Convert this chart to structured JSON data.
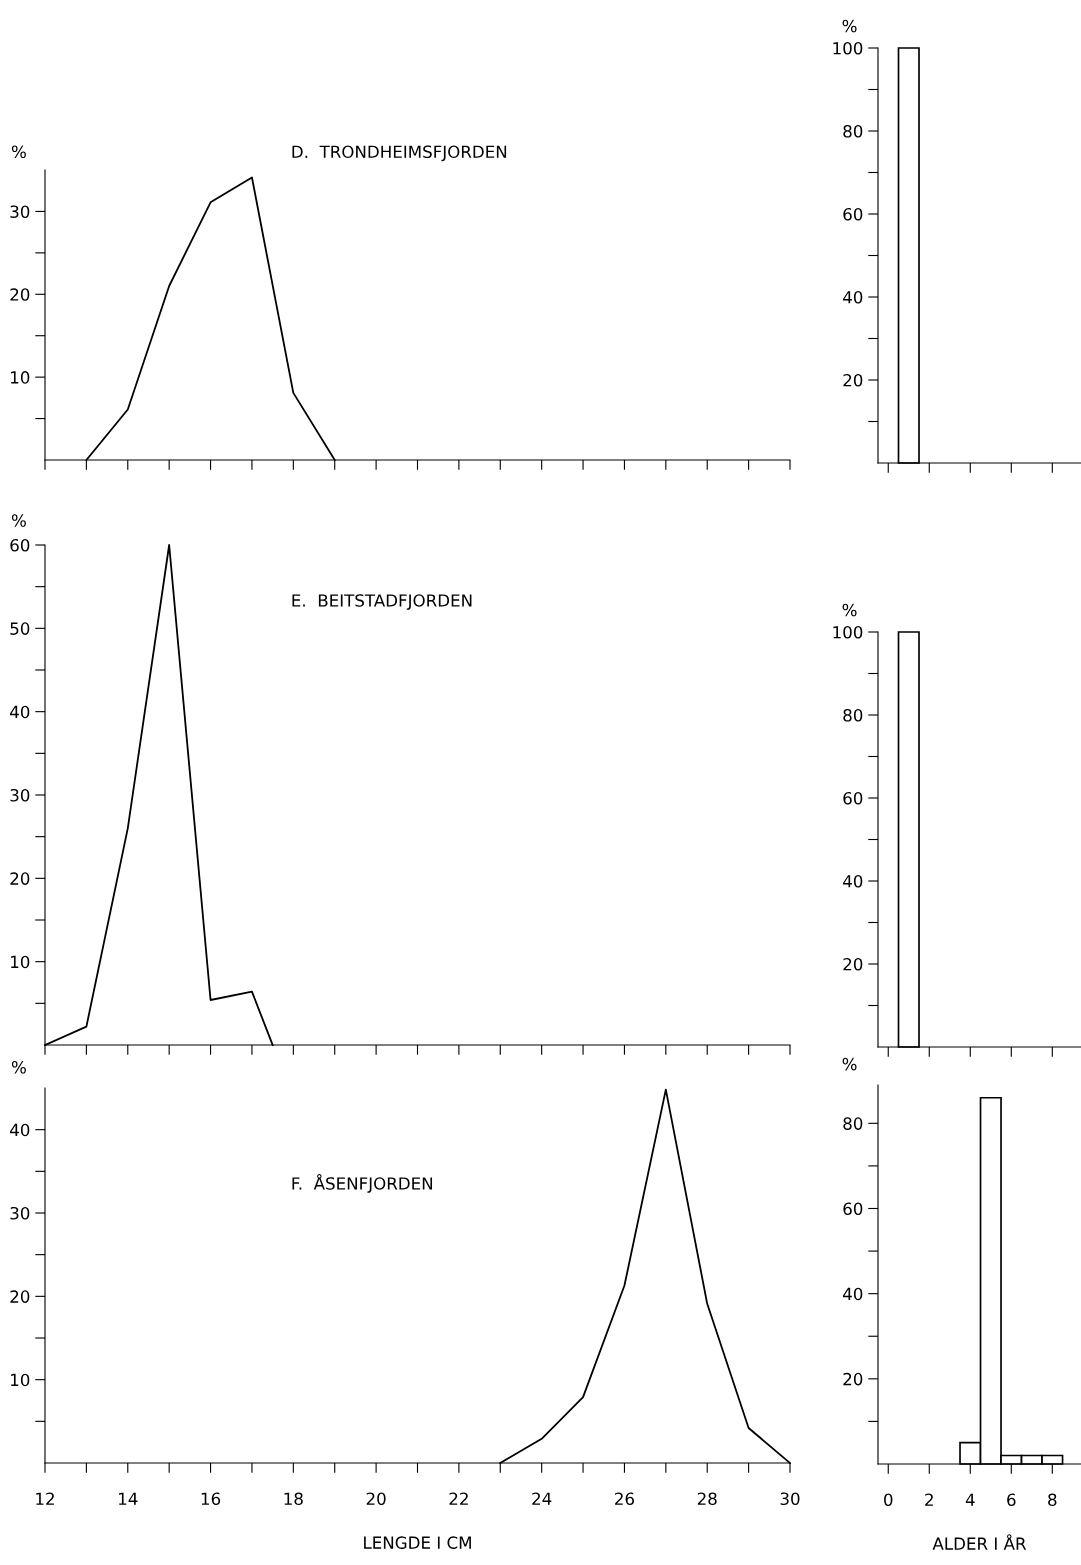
{
  "chart_data": [
    {
      "type": "line",
      "title": "D.  TRONDHEIMSFJORDEN",
      "ylabel": "%",
      "tick_labels": "y",
      "grid": false,
      "legend": false,
      "series": [
        {
          "color": "#000000",
          "x": [
            13,
            14,
            15,
            16,
            17,
            18,
            19
          ],
          "values": [
            0,
            6.1,
            21,
            31.1,
            34.1,
            8.1,
            0
          ]
        }
      ],
      "xlim": [
        12,
        30
      ],
      "xticks": [
        12,
        13,
        14,
        15,
        16,
        17,
        18,
        19,
        20,
        21,
        22,
        23,
        24,
        25,
        26,
        27,
        28,
        29,
        30
      ],
      "ylim": [
        0,
        35
      ],
      "yticks": [
        {
          "value": 5,
          "label": null
        },
        10,
        {
          "value": 15,
          "label": null
        },
        20,
        {
          "value": 25,
          "label": null
        },
        30
      ]
    },
    {
      "type": "bar",
      "ylabel": "%",
      "tick_labels": "y",
      "grid": false,
      "legend": false,
      "series": [
        {
          "color": "#ffffff",
          "x": [
            1
          ],
          "values": [
            100
          ]
        }
      ],
      "xlim": [
        -0.5,
        9.4
      ],
      "xticks": [
        0,
        2,
        4,
        6,
        8
      ],
      "ylim": [
        0,
        100
      ],
      "yticks": [
        {
          "value": 10,
          "label": null
        },
        20,
        {
          "value": 30,
          "label": null
        },
        40,
        {
          "value": 50,
          "label": null
        },
        60,
        {
          "value": 70,
          "label": null
        },
        80,
        {
          "value": 90,
          "label": null
        },
        100
      ]
    },
    {
      "type": "line",
      "title": "E.  BEITSTADFJORDEN",
      "ylabel": "%",
      "tick_labels": "y",
      "grid": false,
      "legend": false,
      "series": [
        {
          "color": "#000000",
          "x": [
            12,
            13,
            14,
            15,
            16,
            17,
            17.5
          ],
          "values": [
            0,
            2.2,
            26,
            60,
            5.4,
            6.4,
            0
          ]
        }
      ],
      "xlim": [
        12,
        30
      ],
      "xticks": [
        12,
        13,
        14,
        15,
        16,
        17,
        18,
        19,
        20,
        21,
        22,
        23,
        24,
        25,
        26,
        27,
        28,
        29,
        30
      ],
      "ylim": [
        0,
        60
      ],
      "yticks": [
        {
          "value": 5,
          "label": null
        },
        10,
        {
          "value": 15,
          "label": null
        },
        20,
        {
          "value": 25,
          "label": null
        },
        30,
        {
          "value": 35,
          "label": null
        },
        40,
        {
          "value": 45,
          "label": null
        },
        50,
        {
          "value": 55,
          "label": null
        },
        60
      ]
    },
    {
      "type": "bar",
      "ylabel": "%",
      "tick_labels": "y",
      "grid": false,
      "legend": false,
      "series": [
        {
          "color": "#ffffff",
          "x": [
            1
          ],
          "values": [
            100
          ]
        }
      ],
      "xlim": [
        -0.5,
        9.4
      ],
      "xticks": [
        0,
        2,
        4,
        6,
        8
      ],
      "ylim": [
        0,
        100
      ],
      "yticks": [
        {
          "value": 10,
          "label": null
        },
        20,
        {
          "value": 30,
          "label": null
        },
        40,
        {
          "value": 50,
          "label": null
        },
        60,
        {
          "value": 70,
          "label": null
        },
        80,
        {
          "value": 90,
          "label": null
        },
        100
      ]
    },
    {
      "type": "line",
      "title": "F.  ÅSENFJORDEN",
      "xlabel": "LENGDE I CM",
      "ylabel": "%",
      "grid": false,
      "legend": false,
      "series": [
        {
          "color": "#000000",
          "x": [
            23,
            24,
            25,
            26,
            27,
            28,
            29,
            30
          ],
          "values": [
            0,
            2.9,
            7.9,
            21.3,
            44.8,
            19.1,
            4.2,
            0
          ]
        }
      ],
      "xlim": [
        12,
        30
      ],
      "xticks": [
        {
          "value": 12,
          "label": "12"
        },
        {
          "value": 13,
          "label": null
        },
        {
          "value": 14,
          "label": "14"
        },
        {
          "value": 15,
          "label": null
        },
        {
          "value": 16,
          "label": "16"
        },
        {
          "value": 17,
          "label": null
        },
        {
          "value": 18,
          "label": "18"
        },
        {
          "value": 19,
          "label": null
        },
        {
          "value": 20,
          "label": "20"
        },
        {
          "value": 21,
          "label": null
        },
        {
          "value": 22,
          "label": "22"
        },
        {
          "value": 23,
          "label": null
        },
        {
          "value": 24,
          "label": "24"
        },
        {
          "value": 25,
          "label": null
        },
        {
          "value": 26,
          "label": "26"
        },
        {
          "value": 27,
          "label": null
        },
        {
          "value": 28,
          "label": "28"
        },
        {
          "value": 29,
          "label": null
        },
        {
          "value": 30,
          "label": "30"
        }
      ],
      "ylim": [
        0,
        45
      ],
      "yticks": [
        {
          "value": 5,
          "label": null
        },
        10,
        {
          "value": 15,
          "label": null
        },
        20,
        {
          "value": 25,
          "label": null
        },
        30,
        {
          "value": 35,
          "label": null
        },
        40
      ]
    },
    {
      "type": "bar",
      "xlabel": "ALDER I ÅR",
      "ylabel": "%",
      "grid": false,
      "legend": false,
      "series": [
        {
          "color": "#ffffff",
          "x": [
            4,
            5,
            6,
            7,
            8
          ],
          "values": [
            5,
            86,
            2,
            2,
            2
          ]
        }
      ],
      "xlim": [
        -0.5,
        9.4
      ],
      "xticks": [
        0,
        2,
        4,
        6,
        8
      ],
      "ylim": [
        0,
        89
      ],
      "yticks": [
        {
          "value": 10,
          "label": null
        },
        20,
        {
          "value": 30,
          "label": null
        },
        40,
        {
          "value": 50,
          "label": null
        },
        60,
        {
          "value": 70,
          "label": null
        },
        80
      ]
    }
  ]
}
